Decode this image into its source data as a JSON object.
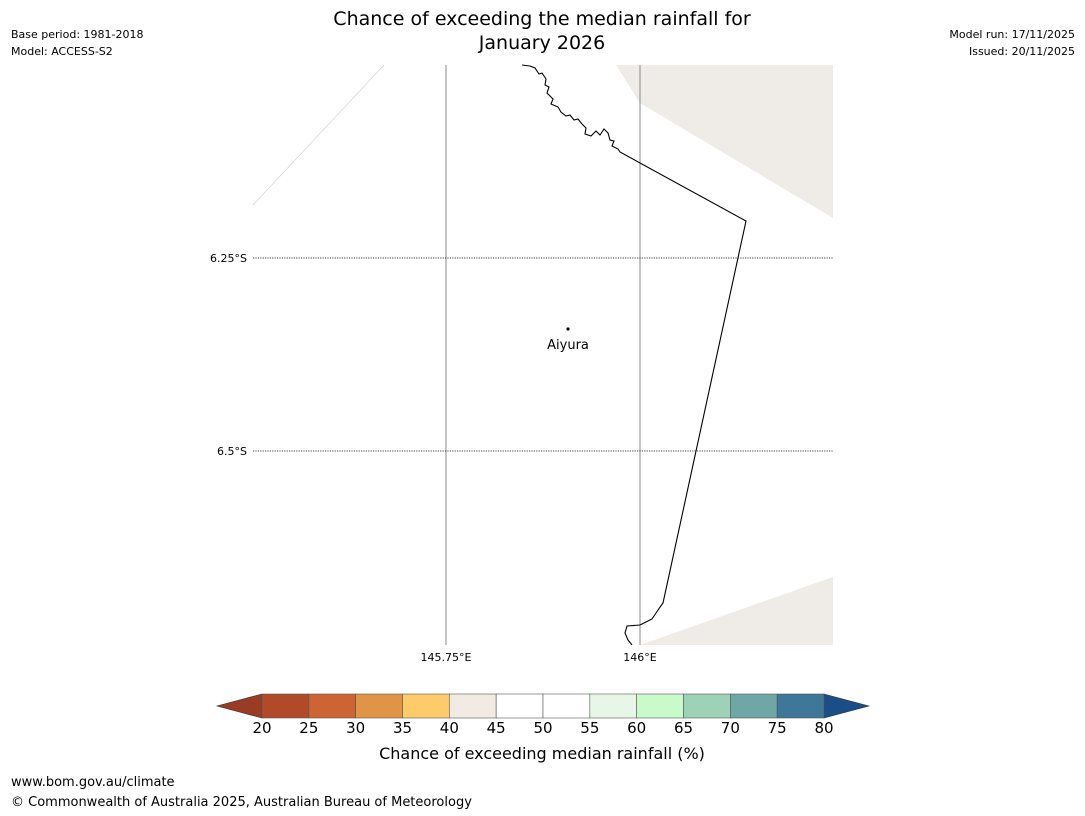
{
  "header": {
    "title_line1": "Chance of exceeding the median rainfall for",
    "title_line2": "January 2026",
    "base_period": "Base period: 1981-2018",
    "model": "Model: ACCESS-S2",
    "model_run": "Model run: 17/11/2025",
    "issued": "Issued: 20/11/2025"
  },
  "map": {
    "lat_labels": [
      "6.25°S",
      "6.5°S"
    ],
    "lon_labels": [
      "145.75°E",
      "146°E"
    ],
    "place": {
      "name": "Aiyura"
    },
    "colors": {
      "land_shade": "#efebe6",
      "border": "#000000",
      "grid": "#888888"
    }
  },
  "colorbar": {
    "ticks": [
      "20",
      "25",
      "30",
      "35",
      "40",
      "45",
      "50",
      "55",
      "60",
      "65",
      "70",
      "75",
      "80"
    ],
    "low_extend_color": "#9a3b24",
    "high_extend_color": "#1a4e86",
    "colors": [
      "#b04a28",
      "#cc6433",
      "#e09546",
      "#fecb6a",
      "#f1ebe4",
      "#ffffff",
      "#ffffff",
      "#e8f6e8",
      "#c9fbca",
      "#9dd2b7",
      "#6fa6a6",
      "#3f7799"
    ],
    "label": "Chance of exceeding median rainfall (%)"
  },
  "footer": {
    "url": "www.bom.gov.au/climate",
    "copyright": "© Commonwealth of Australia 2025, Australian Bureau of Meteorology"
  }
}
